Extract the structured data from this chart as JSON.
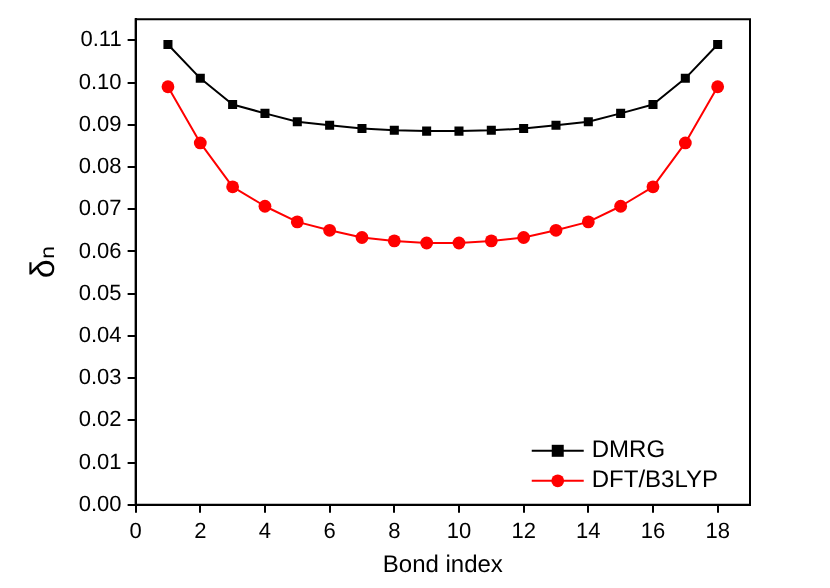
{
  "chart_data": {
    "type": "line",
    "xlabel": "Bond index",
    "ylabel": "δₙ",
    "x": [
      1,
      2,
      3,
      4,
      5,
      6,
      7,
      8,
      9,
      10,
      11,
      12,
      13,
      14,
      15,
      16,
      17,
      18
    ],
    "series": [
      {
        "name": "DMRG",
        "color": "#000000",
        "marker": "square",
        "values": [
          0.109,
          0.101,
          0.0948,
          0.0927,
          0.0907,
          0.0899,
          0.0891,
          0.0887,
          0.0885,
          0.0885,
          0.0887,
          0.0891,
          0.0899,
          0.0907,
          0.0927,
          0.0948,
          0.101,
          0.109
        ]
      },
      {
        "name": "DFT/B3LYP",
        "color": "#ff0000",
        "marker": "circle",
        "values": [
          0.099,
          0.0857,
          0.0753,
          0.0707,
          0.067,
          0.065,
          0.0633,
          0.0625,
          0.062,
          0.062,
          0.0625,
          0.0633,
          0.065,
          0.067,
          0.0707,
          0.0753,
          0.0857,
          0.099
        ]
      }
    ],
    "xlim": [
      0,
      19
    ],
    "xticks": [
      0,
      2,
      4,
      6,
      8,
      10,
      12,
      14,
      16,
      18
    ],
    "ylim": [
      0,
      0.115
    ],
    "yticks": [
      {
        "value": 0,
        "label": "0.00"
      },
      0.01,
      0.02,
      0.03,
      0.04,
      0.05,
      0.06,
      0.07,
      0.08,
      0.09,
      {
        "value": 0.1,
        "label": "0.10"
      },
      0.11
    ],
    "grid": false,
    "legend": "bottom right"
  }
}
